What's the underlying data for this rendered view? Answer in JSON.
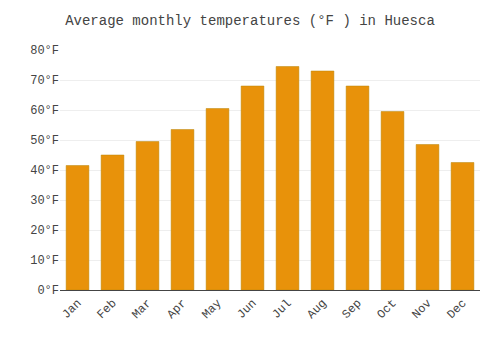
{
  "chart_data": {
    "type": "bar",
    "title": "Average monthly temperatures (°F ) in Huesca",
    "categories": [
      "Jan",
      "Feb",
      "Mar",
      "Apr",
      "May",
      "Jun",
      "Jul",
      "Aug",
      "Sep",
      "Oct",
      "Nov",
      "Dec"
    ],
    "values": [
      41.5,
      45.0,
      49.5,
      53.5,
      60.5,
      68.0,
      74.5,
      73.0,
      68.0,
      59.5,
      48.5,
      42.5
    ],
    "color": "#E8920A",
    "ylim": [
      0,
      80
    ],
    "yticks": [
      {
        "value": 0,
        "label": "0°F"
      },
      {
        "value": 10,
        "label": "10°F"
      },
      {
        "value": 20,
        "label": "20°F"
      },
      {
        "value": 30,
        "label": "30°F"
      },
      {
        "value": 40,
        "label": "40°F"
      },
      {
        "value": 50,
        "label": "50°F"
      },
      {
        "value": 60,
        "label": "60°F"
      },
      {
        "value": 70,
        "label": "70°F"
      },
      {
        "value": 80,
        "label": "80°F"
      }
    ],
    "grid": true
  }
}
